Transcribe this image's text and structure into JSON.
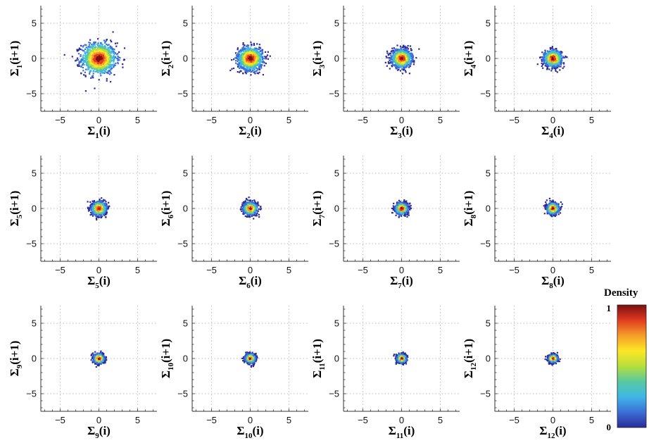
{
  "chart_data": {
    "type": "scatter",
    "description_type": "density scatter grid",
    "xlim": [
      -7.5,
      7.5
    ],
    "ylim": [
      -7.5,
      7.5
    ],
    "xticks": [
      -5,
      0,
      5
    ],
    "yticks": [
      -5,
      0,
      5
    ],
    "grid": true,
    "grid_style": "dotted",
    "colormap": [
      "#2b2b9a",
      "#3b6fd6",
      "#3fb7e6",
      "#58c9a0",
      "#b6de3c",
      "#fde725",
      "#f59e2a",
      "#e23b1f",
      "#7a0f0f"
    ],
    "colorbar": {
      "title": "Density",
      "min": "0",
      "max": "1",
      "placement": "right"
    },
    "panels": [
      {
        "index": 1,
        "spread": 1.1,
        "xlabel": {
          "base": "Σ",
          "sub": "1",
          "suffix": "(i)"
        },
        "ylabel": {
          "base": "Σ",
          "sub": "1",
          "suffix": "(i+1)"
        }
      },
      {
        "index": 2,
        "spread": 0.8,
        "xlabel": {
          "base": "Σ",
          "sub": "2",
          "suffix": "(i)"
        },
        "ylabel": {
          "base": "Σ",
          "sub": "2",
          "suffix": "(i+1)"
        }
      },
      {
        "index": 3,
        "spread": 0.62,
        "xlabel": {
          "base": "Σ",
          "sub": "3",
          "suffix": "(i)"
        },
        "ylabel": {
          "base": "Σ",
          "sub": "3",
          "suffix": "(i+1)"
        }
      },
      {
        "index": 4,
        "spread": 0.55,
        "xlabel": {
          "base": "Σ",
          "sub": "4",
          "suffix": "(i)"
        },
        "ylabel": {
          "base": "Σ",
          "sub": "4",
          "suffix": "(i+1)"
        }
      },
      {
        "index": 5,
        "spread": 0.45,
        "xlabel": {
          "base": "Σ",
          "sub": "5",
          "suffix": "(i)"
        },
        "ylabel": {
          "base": "Σ",
          "sub": "5",
          "suffix": "(i+1)"
        }
      },
      {
        "index": 6,
        "spread": 0.42,
        "xlabel": {
          "base": "Σ",
          "sub": "6",
          "suffix": "(i)"
        },
        "ylabel": {
          "base": "Σ",
          "sub": "6",
          "suffix": "(i+1)"
        }
      },
      {
        "index": 7,
        "spread": 0.38,
        "xlabel": {
          "base": "Σ",
          "sub": "7",
          "suffix": "(i)"
        },
        "ylabel": {
          "base": "Σ",
          "sub": "7",
          "suffix": "(i+1)"
        }
      },
      {
        "index": 8,
        "spread": 0.37,
        "xlabel": {
          "base": "Σ",
          "sub": "8",
          "suffix": "(i)"
        },
        "ylabel": {
          "base": "Σ",
          "sub": "8",
          "suffix": "(i+1)"
        }
      },
      {
        "index": 9,
        "spread": 0.32,
        "xlabel": {
          "base": "Σ",
          "sub": "9",
          "suffix": "(i)"
        },
        "ylabel": {
          "base": "Σ",
          "sub": "9",
          "suffix": "(i+1)"
        }
      },
      {
        "index": 10,
        "spread": 0.3,
        "xlabel": {
          "base": "Σ",
          "sub": "10",
          "suffix": "(i)"
        },
        "ylabel": {
          "base": "Σ",
          "sub": "10",
          "suffix": "(i+1)"
        }
      },
      {
        "index": 11,
        "spread": 0.28,
        "xlabel": {
          "base": "Σ",
          "sub": "11",
          "suffix": "(i)"
        },
        "ylabel": {
          "base": "Σ",
          "sub": "11",
          "suffix": "(i+1)"
        }
      },
      {
        "index": 12,
        "spread": 0.27,
        "xlabel": {
          "base": "Σ",
          "sub": "12",
          "suffix": "(i)"
        },
        "ylabel": {
          "base": "Σ",
          "sub": "12",
          "suffix": "(i+1)"
        }
      }
    ]
  }
}
